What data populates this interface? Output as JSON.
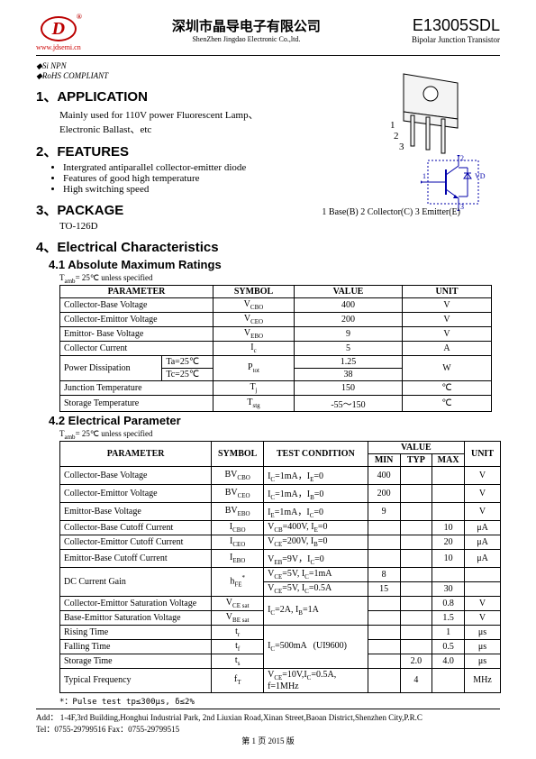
{
  "header": {
    "logo_letter": "D",
    "logo_url": "www.jdsemi.cn",
    "title_cn": "深圳市晶导电子有限公司",
    "title_en": "ShenZhen Jingdao Electronic Co.,ltd.",
    "partnum": "E13005SDL",
    "subtitle": "Bipolar Junction Transistor"
  },
  "tags": {
    "t1": "◆Si  NPN",
    "t2": "◆RoHS COMPLIANT"
  },
  "sec1": {
    "h": "1、APPLICATION",
    "body1": "Mainly used for 110V power Fluorescent Lamp、",
    "body2": "Electronic Ballast、etc"
  },
  "sec2": {
    "h": "2、FEATURES",
    "f1": "Intergrated antiparallel collector-emitter diode",
    "f2": "Features of good high temperature",
    "f3": "High switching speed"
  },
  "sec3": {
    "h": "3、PACKAGE",
    "val": "TO-126D"
  },
  "sec4": {
    "h": "4、Electrical Characteristics",
    "sub1": "4.1 Absolute Maximum Ratings",
    "note1": "Tamb= 25℃  unless specified",
    "sub2": "4.2  Electrical Parameter",
    "note2": "Tamb= 25℃  unless specified"
  },
  "pins": "1 Base(B)   2 Collector(C)   3 Emitter(E)",
  "t1": {
    "h": [
      "PARAMETER",
      "SYMBOL",
      "VALUE",
      "UNIT"
    ],
    "r": [
      [
        "Collector-Base Voltage",
        "V<sub>CBO</sub>",
        "400",
        "V"
      ],
      [
        "Collector-Emittor Voltage",
        "V<sub>CEO</sub>",
        "200",
        "V"
      ],
      [
        "Emittor- Base Voltage",
        "V<sub>EBO</sub>",
        "9",
        "V"
      ],
      [
        "Collector Current",
        "I<sub>c</sub>",
        "5",
        "A"
      ]
    ],
    "pd": {
      "label": "Power Dissipation",
      "c1": "Ta=25℃",
      "c2": "Tc=25℃",
      "sym": "P<sub>tot</sub>",
      "v1": "1.25",
      "v2": "38",
      "u": "W"
    },
    "r2": [
      [
        "Junction Temperature",
        "T<sub>j</sub>",
        "150",
        "℃"
      ],
      [
        "Storage Temperature",
        "T<sub>stg</sub>",
        "-55～150",
        "℃"
      ]
    ]
  },
  "t2": {
    "h": {
      "p": "PARAMETER",
      "s": "SYMBOL",
      "tc": "TEST CONDITION",
      "v": "VALUE",
      "min": "MIN",
      "typ": "TYP",
      "max": "MAX",
      "u": "UNIT"
    },
    "rows": [
      {
        "p": "Collector-Base Voltage",
        "s": "BV<sub>CBO</sub>",
        "tc": "I<sub>C</sub>=1mA，I<sub>E</sub>=0",
        "min": "400",
        "typ": "",
        "max": "",
        "u": "V"
      },
      {
        "p": "Collector-Emittor Voltage",
        "s": "BV<sub>CEO</sub>",
        "tc": "I<sub>C</sub>=1mA，I<sub>B</sub>=0",
        "min": "200",
        "typ": "",
        "max": "",
        "u": "V"
      },
      {
        "p": "Emittor-Base Voltage",
        "s": "BV<sub>EBO</sub>",
        "tc": "I<sub>E</sub>=1mA，I<sub>C</sub>=0",
        "min": "9",
        "typ": "",
        "max": "",
        "u": "V"
      },
      {
        "p": "Collector-Base Cutoff Current",
        "s": "I<sub>CBO</sub>",
        "tc": "V<sub>CB</sub>=400V, I<sub>E</sub>=0",
        "min": "",
        "typ": "",
        "max": "10",
        "u": "μA"
      },
      {
        "p": "Collector-Emittor Cutoff Current",
        "s": "I<sub>CEO</sub>",
        "tc": "V<sub>CE</sub>=200V, I<sub>B</sub>=0",
        "min": "",
        "typ": "",
        "max": "20",
        "u": "μA"
      },
      {
        "p": "Emittor-Base Cutoff Current",
        "s": "I<sub>EBO</sub>",
        "tc": "V<sub>EB</sub>=9V，I<sub>C</sub>=0",
        "min": "",
        "typ": "",
        "max": "10",
        "u": "μA"
      }
    ],
    "dc": {
      "p": "DC Current Gain",
      "s": "h<sub>FE</sub><sup>*</sup>",
      "tc1": "V<sub>CE</sub>=5V, I<sub>C</sub>=1mA",
      "min1": "8",
      "tc2": "V<sub>CE</sub>=5V, I<sub>C</sub>=0.5A",
      "min2": "15",
      "max2": "30"
    },
    "rows2": [
      {
        "p": "Collector-Emittor Saturation Voltage",
        "s": "V<sub>CE sat</sub>",
        "tc": "I<sub>C</sub>=2A, I<sub>B</sub>=1A",
        "min": "",
        "typ": "",
        "max": "0.8",
        "u": "V"
      },
      {
        "p": "Base-Emittor Saturation Voltage",
        "s": "V<sub>BE sat</sub>",
        "tc": "",
        "min": "",
        "typ": "",
        "max": "1.5",
        "u": "V"
      }
    ],
    "timing": {
      "tc": "I<sub>C</sub>=500mA   (UI9600)",
      "r": [
        {
          "p": "Rising Time",
          "s": "t<sub>r</sub>",
          "min": "",
          "typ": "",
          "max": "1",
          "u": "μs"
        },
        {
          "p": "Falling Time",
          "s": "t<sub>f</sub>",
          "min": "",
          "typ": "",
          "max": "0.5",
          "u": "μs"
        },
        {
          "p": "Storage Time",
          "s": "t<sub>s</sub>",
          "min": "",
          "typ": "2.0",
          "max": "4.0",
          "u": "μs"
        }
      ]
    },
    "freq": {
      "p": "Typical Frequency",
      "s": "f<sub>T</sub>",
      "tc": "V<sub>CE</sub>=10V,I<sub>C</sub>=0.5A, f=1MHz",
      "min": "",
      "typ": "4",
      "max": "",
      "u": "MHz"
    }
  },
  "pulse_note": "*：Pulse test  tp≤300μs, δ≤2%",
  "footer": {
    "addr": "Add：   1-4F,3rd Building,Honghui Industrial Park, 2nd Liuxian Road,Xinan Street,Baoan District,Shenzhen City,P.R.C",
    "tel": "Tel：0755-29799516      Fax：0755-29799515",
    "page": "第 1 页    2015 版"
  }
}
